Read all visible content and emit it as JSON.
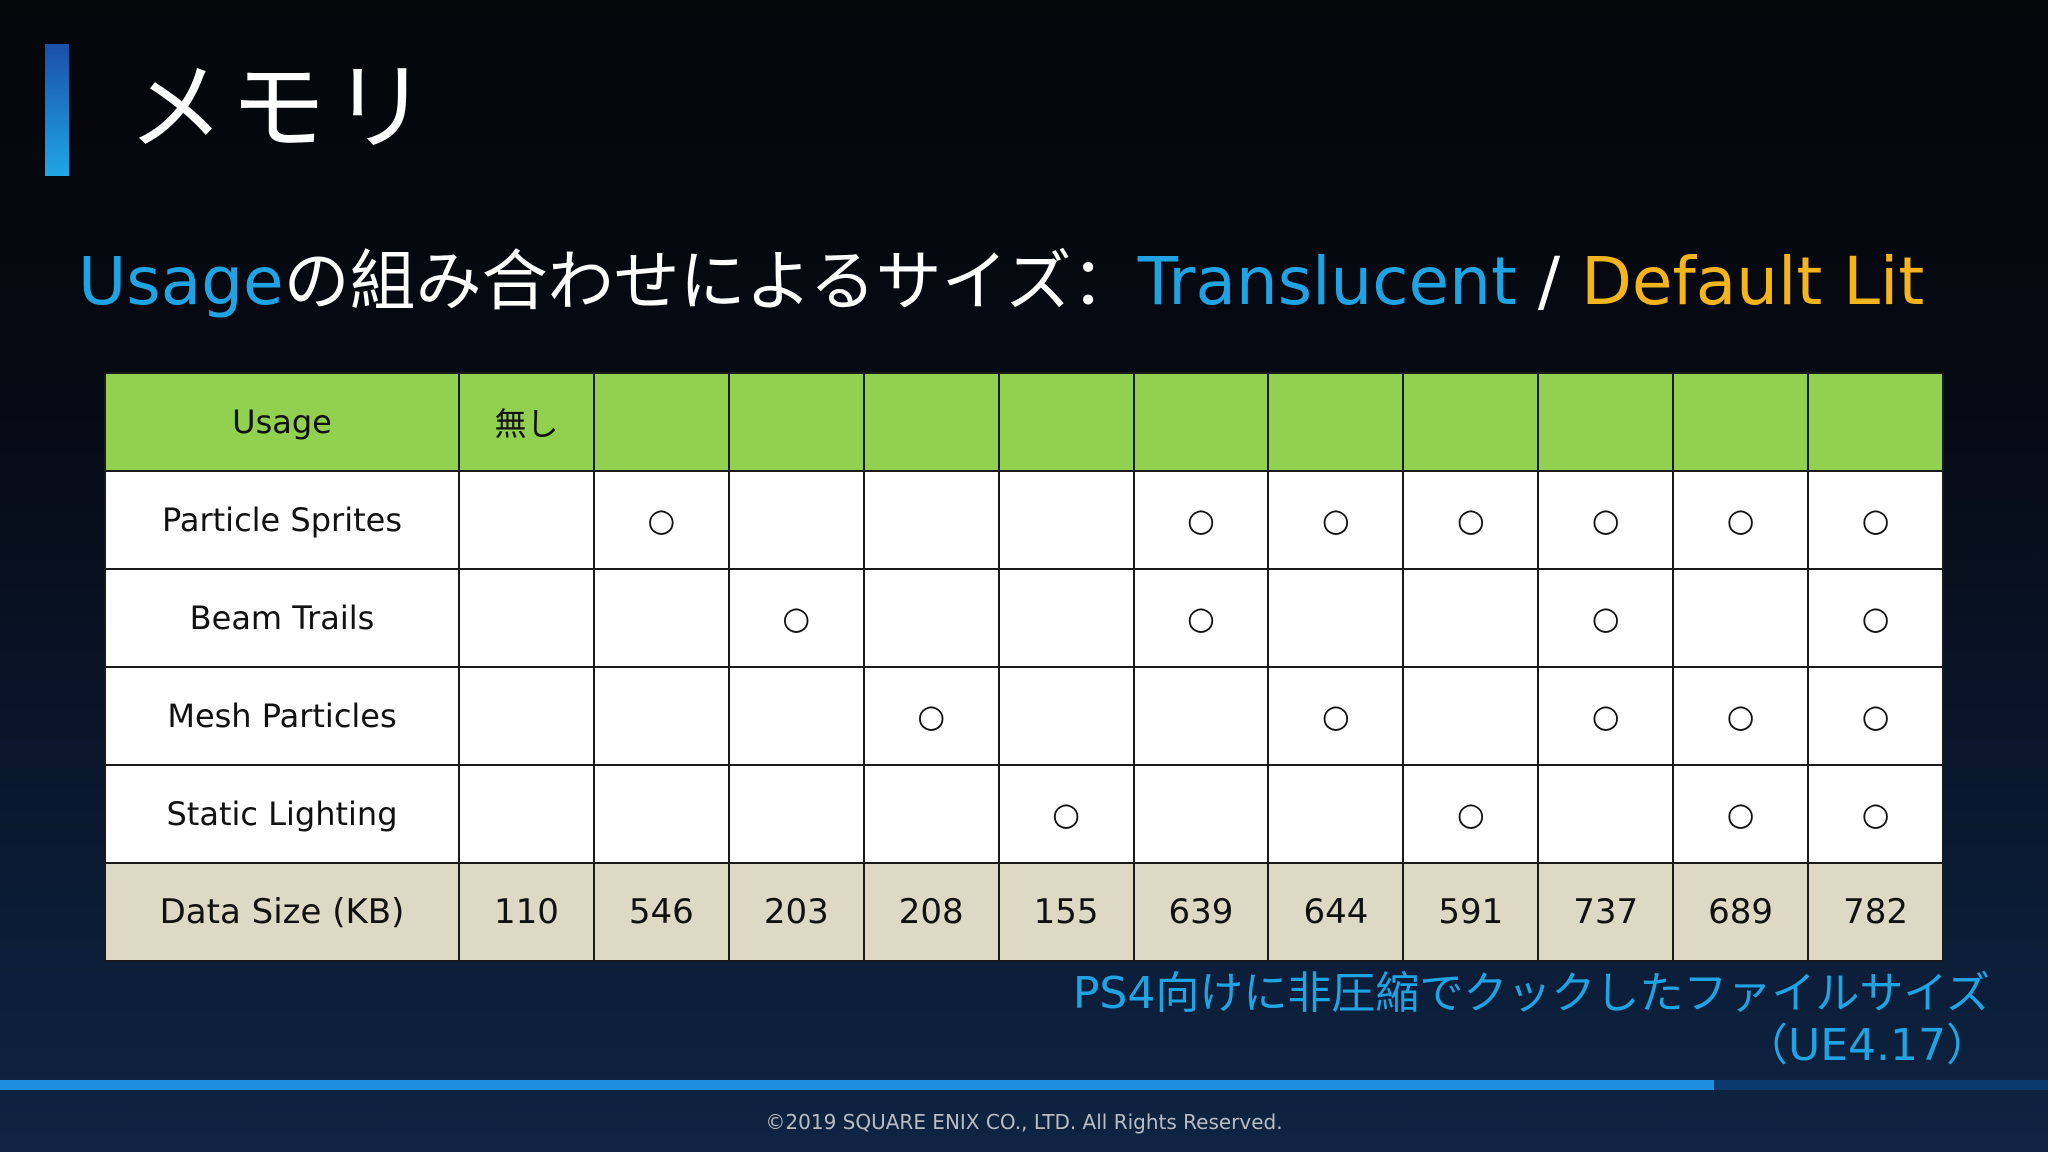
{
  "slide": {
    "title": "メモリ",
    "subtitle": {
      "part1": "Usage",
      "part2": "の組み合わせによるサイズ：",
      "part3": "Translucent",
      "part4": " / ",
      "part5": "Default Lit"
    },
    "footnote": {
      "line1": "PS4向けに非圧縮でクックしたファイルサイズ",
      "line2": "（UE4.17）"
    },
    "copyright": "©2019 SQUARE ENIX CO., LTD. All Rights Reserved."
  },
  "table": {
    "header": [
      "Usage",
      "無し",
      "",
      "",
      "",
      "",
      "",
      "",
      "",
      "",
      "",
      ""
    ],
    "rows": [
      {
        "label": "Particle Sprites",
        "cells": [
          "",
          "○",
          "",
          "",
          "",
          "○",
          "○",
          "○",
          "○",
          "○",
          "○"
        ]
      },
      {
        "label": "Beam Trails",
        "cells": [
          "",
          "",
          "○",
          "",
          "",
          "○",
          "",
          "",
          "○",
          "",
          "○"
        ]
      },
      {
        "label": "Mesh Particles",
        "cells": [
          "",
          "",
          "",
          "○",
          "",
          "",
          "○",
          "",
          "○",
          "○",
          "○"
        ]
      },
      {
        "label": "Static Lighting",
        "cells": [
          "",
          "",
          "",
          "",
          "○",
          "",
          "",
          "○",
          "",
          "○",
          "○"
        ]
      }
    ],
    "size_row": {
      "label": "Data Size (KB)",
      "values": [
        "110",
        "546",
        "203",
        "208",
        "155",
        "639",
        "644",
        "591",
        "737",
        "689",
        "782"
      ]
    }
  },
  "colors": {
    "accent_blue": "#1fa3e3",
    "accent_orange": "#f4b41c",
    "header_green": "#92d050",
    "size_row_beige": "#ddd9c4"
  }
}
